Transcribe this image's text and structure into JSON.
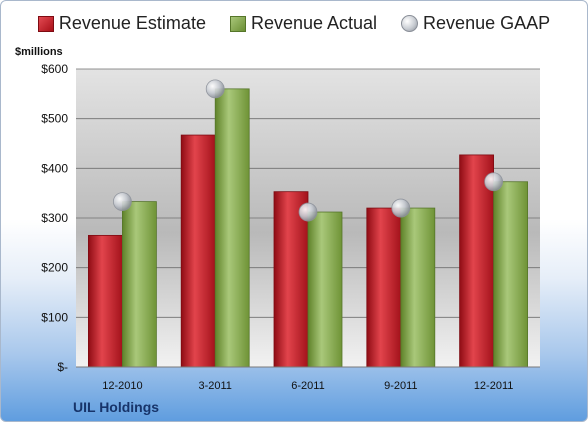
{
  "chart_data": {
    "type": "bar",
    "unit_label": "$millions",
    "categories": [
      "12-2010",
      "3-2011",
      "6-2011",
      "9-2011",
      "12-2011"
    ],
    "series": [
      {
        "name": "Revenue Estimate",
        "kind": "bar",
        "color": "#c81e28",
        "values": [
          265,
          467,
          353,
          320,
          427
        ]
      },
      {
        "name": "Revenue Actual",
        "kind": "bar",
        "color": "#8aad55",
        "values": [
          333,
          560,
          312,
          320,
          373
        ]
      },
      {
        "name": "Revenue GAAP",
        "kind": "marker",
        "color": "#c9cdd3",
        "values": [
          333,
          560,
          312,
          320,
          373
        ]
      }
    ],
    "ylim": [
      0,
      600
    ],
    "yticks": [
      {
        "value": 0,
        "label": "$-"
      },
      {
        "value": 100,
        "label": "$100"
      },
      {
        "value": 200,
        "label": "$200"
      },
      {
        "value": 300,
        "label": "$300"
      },
      {
        "value": 400,
        "label": "$400"
      },
      {
        "value": 500,
        "label": "$500"
      },
      {
        "value": 600,
        "label": "$600"
      }
    ],
    "grid": true,
    "legend_position": "top"
  },
  "footer": {
    "company": "UIL Holdings"
  }
}
